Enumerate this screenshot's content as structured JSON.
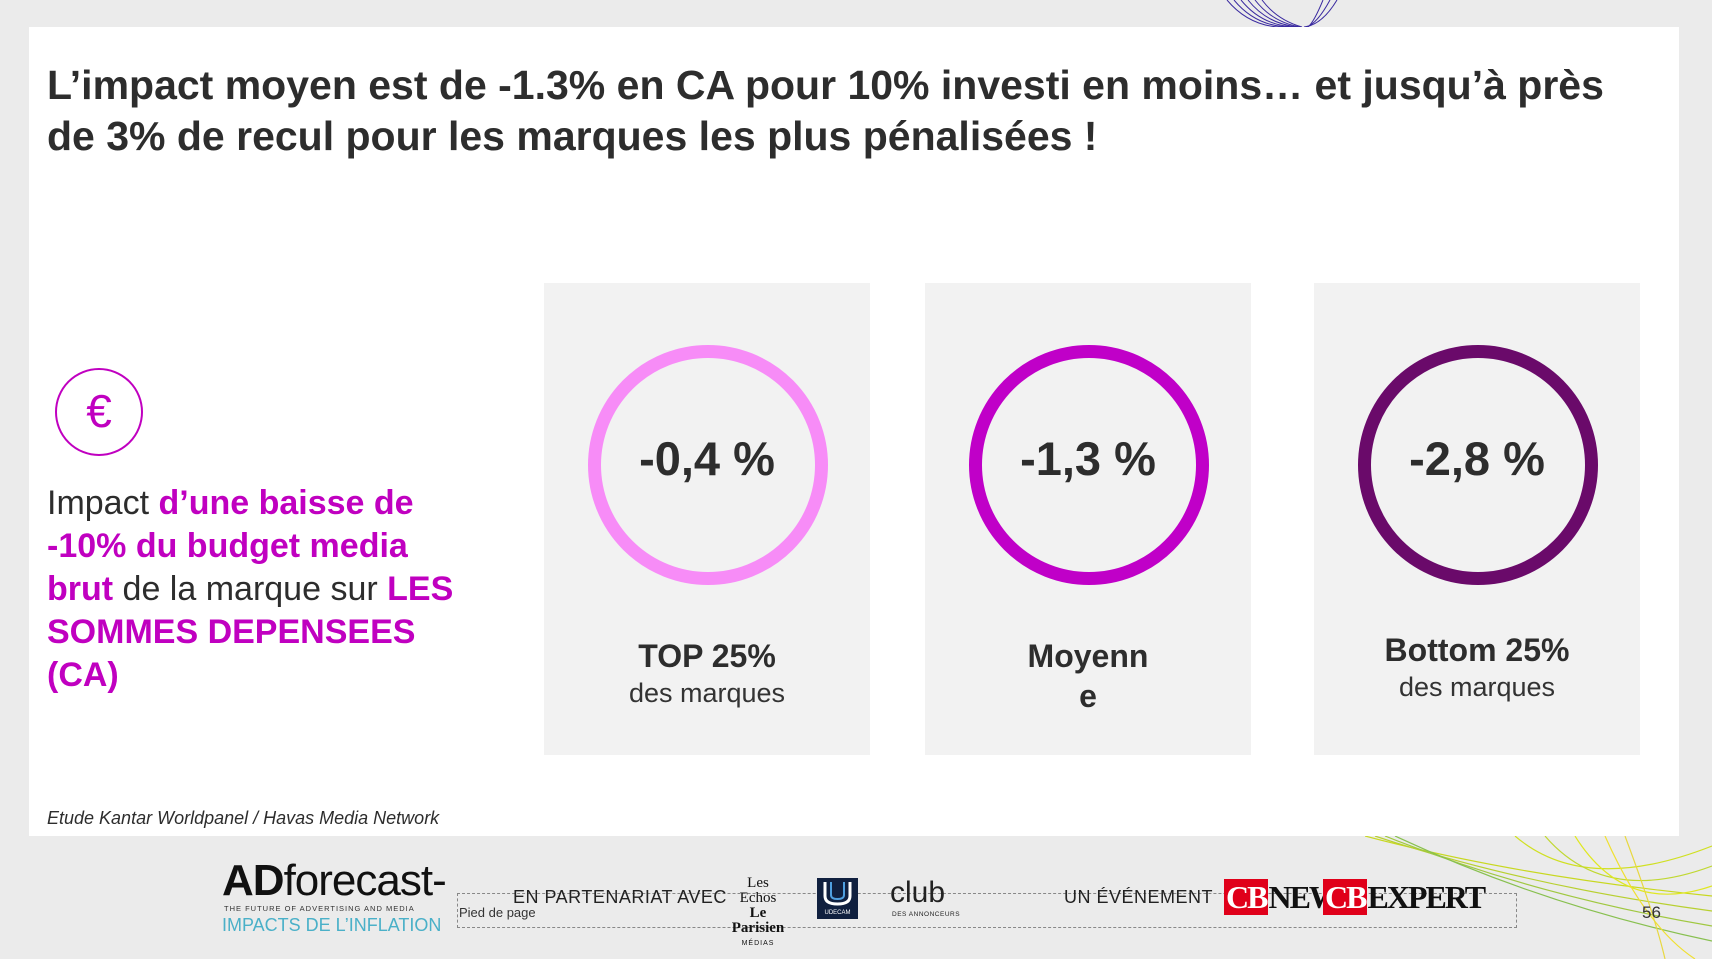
{
  "title": "L’impact moyen est de -1.3% en CA pour 10% investi en moins… et jusqu’à près de 3% de recul pour les marques les plus pénalisées !",
  "euro_symbol": "€",
  "impact": {
    "prefix": "Impact ",
    "highlight1": "d’une baisse de -10% du budget media brut",
    "middle": " de la marque sur ",
    "highlight2": "LES SOMMES DEPENSEES (CA)"
  },
  "cards": [
    {
      "value": "-0,4 %",
      "label": "TOP 25%",
      "sublabel": "des marques",
      "ring_color": "#f78cf7"
    },
    {
      "value": "-1,3 %",
      "label_line1": "Moyenn",
      "label_line2": "e",
      "ring_color": "#c000c8"
    },
    {
      "value": "-2,8 %",
      "label": "Bottom  25%",
      "sublabel": "des marques",
      "ring_color": "#6a0a6a"
    }
  ],
  "source": "Etude Kantar Worldpanel / Havas Media Network",
  "footer": {
    "ad_logo_a": "AD",
    "ad_logo_b": "forecast-",
    "ad_tagline": "THE FUTURE OF ADVERTISING AND MEDIA",
    "ad_subtitle": "IMPACTS DE L’INFLATION",
    "pied": "Pied de page",
    "partner": "EN PARTENARIAT AVEC",
    "lesechos_a": "Les Echos",
    "lesechos_b": "Le Parisien",
    "lesechos_c": "MÉDIAS",
    "udecam": "UDECAM",
    "club": "club",
    "club_sub": "DES ANNONCEURS",
    "evenement": "UN ÉVÉNEMENT",
    "cb_news_a": "CB",
    "cb_news_b": "NEWS",
    "cb_expert_a": "CB",
    "cb_expert_b": "EXPERT",
    "page_number": "56"
  }
}
